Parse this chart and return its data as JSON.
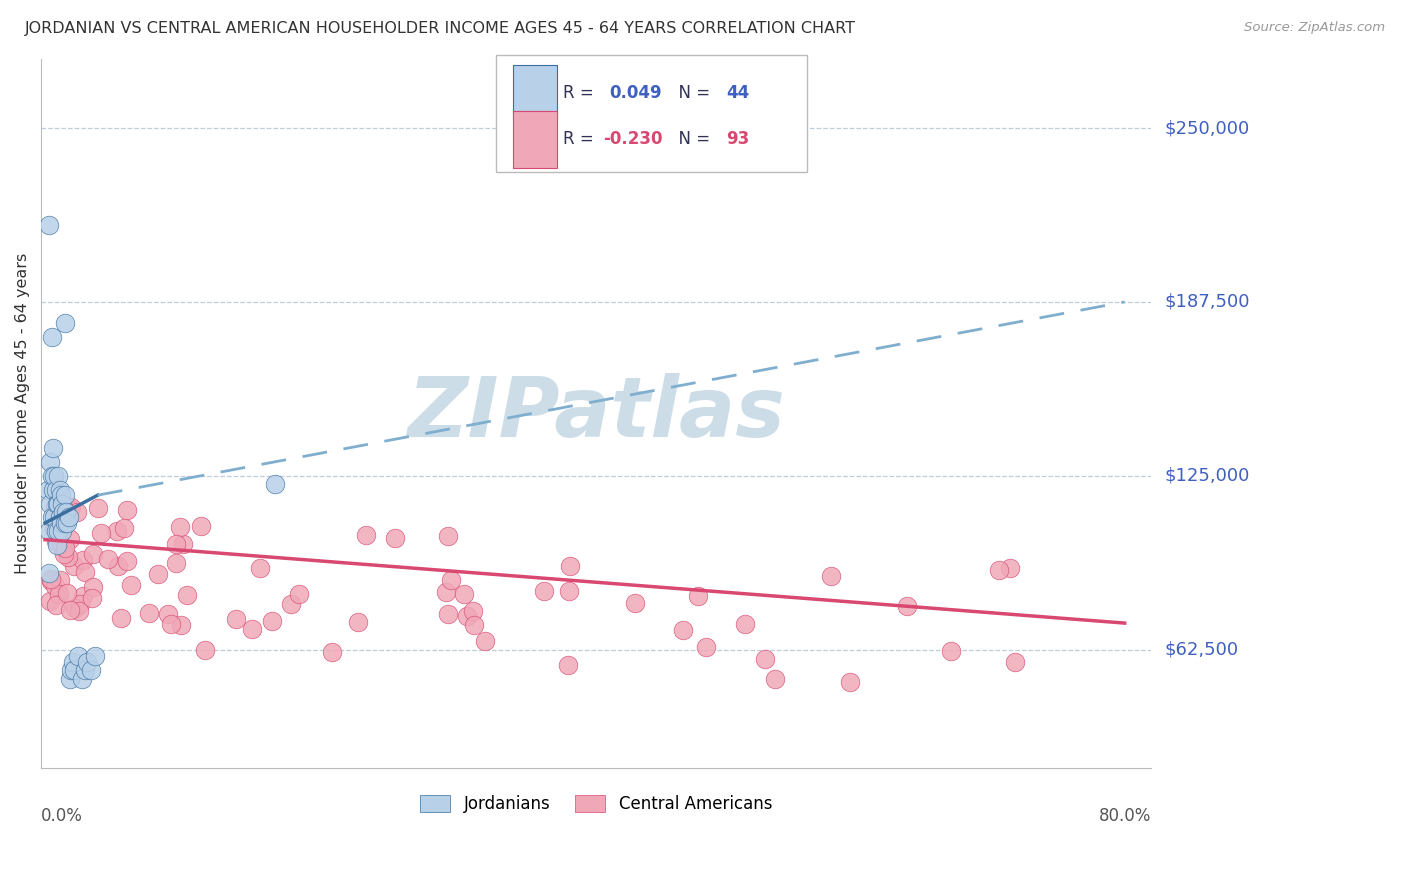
{
  "title": "JORDANIAN VS CENTRAL AMERICAN HOUSEHOLDER INCOME AGES 45 - 64 YEARS CORRELATION CHART",
  "source": "Source: ZipAtlas.com",
  "ylabel": "Householder Income Ages 45 - 64 years",
  "ytick_values": [
    62500,
    125000,
    187500,
    250000
  ],
  "ytick_labels": [
    "$62,500",
    "$125,000",
    "$187,500",
    "$250,000"
  ],
  "ymin": 20000,
  "ymax": 275000,
  "xmin": -0.003,
  "xmax": 0.84,
  "legend_blue_r": "0.049",
  "legend_blue_n": "44",
  "legend_pink_r": "-0.230",
  "legend_pink_n": "93",
  "blue_fill": "#b8d0e8",
  "blue_edge": "#3a6fa0",
  "blue_line": "#3a6fa0",
  "blue_dash": "#80aece",
  "pink_fill": "#f0a8b8",
  "pink_edge": "#d84870",
  "pink_line": "#d84870",
  "watermark_color": "#ccdde8",
  "grid_color": "#c0ccd8",
  "title_color": "#333333",
  "source_color": "#999999",
  "right_label_color": "#4060c0",
  "legend_text_color": "#333355",
  "legend_blue_val_color": "#4060c0",
  "legend_pink_val_color": "#d84870"
}
